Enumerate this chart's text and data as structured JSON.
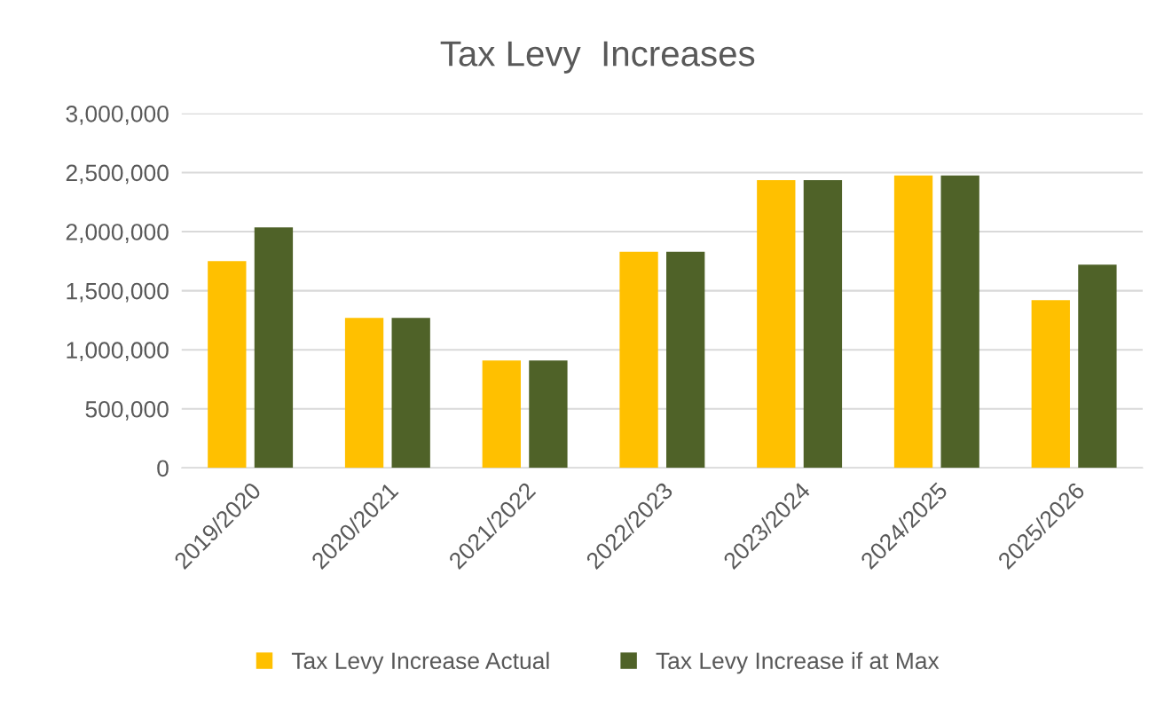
{
  "chart_data": {
    "type": "bar",
    "title": "Tax Levy  Increases",
    "categories": [
      "2019/2020",
      "2020/2021",
      "2021/2022",
      "2022/2023",
      "2023/2024",
      "2024/2025",
      "2025/2026"
    ],
    "series": [
      {
        "name": "Tax Levy Increase Actual",
        "color": "#ffc000",
        "values": [
          1750000,
          1270000,
          910000,
          1830000,
          2435000,
          2475000,
          1420000
        ]
      },
      {
        "name": "Tax Levy Increase if at Max",
        "color": "#4f6228",
        "values": [
          2035000,
          1270000,
          910000,
          1830000,
          2435000,
          2475000,
          1720000
        ]
      }
    ],
    "ylim": [
      0,
      3000000
    ],
    "yticks": [
      {
        "value": 0,
        "label": "0"
      },
      {
        "value": 500000,
        "label": "500,000"
      },
      {
        "value": 1000000,
        "label": "1,000,000"
      },
      {
        "value": 1500000,
        "label": "1,500,000"
      },
      {
        "value": 2000000,
        "label": "2,000,000"
      },
      {
        "value": 2500000,
        "label": "2,500,000"
      },
      {
        "value": 3000000,
        "label": "3,000,000"
      }
    ],
    "grid": "y",
    "legend": "bottom"
  }
}
